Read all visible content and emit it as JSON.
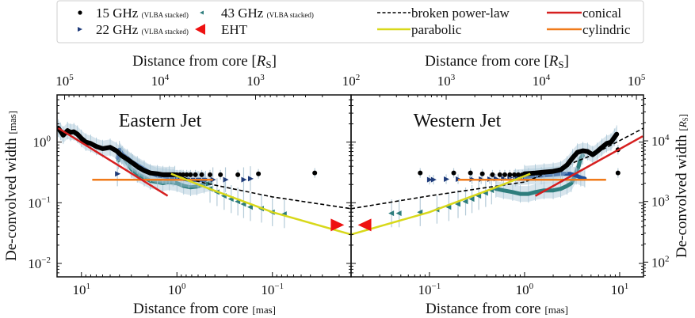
{
  "chart_data": {
    "type": "scatter",
    "title": "",
    "log_scale": {
      "x": true,
      "y": true
    },
    "legend": {
      "placement": "top",
      "entries": [
        {
          "label": "15 GHz",
          "note": "(VLBA stacked)",
          "marker": "circle",
          "color": "#000000"
        },
        {
          "label": "22 GHz",
          "note": "(VLBA stacked)",
          "marker": "triangle-right",
          "color": "#1f3b7a"
        },
        {
          "label": "43 GHz",
          "note": "(VLBA stacked)",
          "marker": "triangle-left",
          "color": "#2e7d7d"
        },
        {
          "label": "EHT",
          "note": "",
          "marker": "triangle-left-large",
          "color": "#ee1111"
        },
        {
          "label": "broken power-law",
          "note": "",
          "marker": "dashed-line",
          "color": "#000000"
        },
        {
          "label": "parabolic",
          "note": "",
          "marker": "line",
          "color": "#d8d81a"
        },
        {
          "label": "conical",
          "note": "",
          "marker": "line",
          "color": "#d61f1f"
        },
        {
          "label": "cylindric",
          "note": "",
          "marker": "line",
          "color": "#f07a1a"
        }
      ]
    },
    "panels": [
      {
        "name": "Eastern Jet",
        "xlabel": "Distance from core",
        "xlabel_unit": "[mas]",
        "top_xlabel": "Distance from core",
        "top_xlabel_unit": "[R",
        "top_xlabel_sub": "S",
        "ylabel": "De-convolved width",
        "ylabel_unit": "[mas]",
        "x_reversed": true,
        "xlim": [
          18,
          0.015
        ],
        "ylim": [
          0.006,
          6
        ],
        "x_ticks": [
          {
            "base": "10",
            "exp": "1",
            "value": 10
          },
          {
            "base": "10",
            "exp": "0",
            "value": 1
          },
          {
            "base": "10",
            "exp": "−1",
            "value": 0.1
          }
        ],
        "top_ticks": [
          {
            "base": "10",
            "exp": "5",
            "value": 100000
          },
          {
            "base": "10",
            "exp": "4",
            "value": 10000
          },
          {
            "base": "10",
            "exp": "3",
            "value": 1000
          },
          {
            "base": "10",
            "exp": "2",
            "value": 100
          }
        ],
        "y_ticks": [
          {
            "base": "10",
            "exp": "0",
            "value": 1
          },
          {
            "base": "10",
            "exp": "−1",
            "value": 0.1
          },
          {
            "base": "10",
            "exp": "−2",
            "value": 0.01
          }
        ],
        "series": [
          {
            "name": "15 GHz",
            "type": "scatter",
            "x": [
              1.0,
              0.93,
              0.86,
              0.79,
              0.72,
              0.64,
              0.55,
              0.45,
              0.35,
              0.23,
              0.14,
              0.036
            ],
            "y": [
              0.29,
              0.29,
              0.29,
              0.29,
              0.29,
              0.29,
              0.29,
              0.29,
              0.29,
              0.29,
              0.3,
              0.31
            ],
            "yerr_factor": 1.2
          },
          {
            "name": "15 GHz ridge",
            "type": "line",
            "x": [
              17.5,
              16.5,
              15.5,
              14,
              13,
              12,
              11,
              10,
              9,
              8,
              7,
              6,
              5,
              4.3,
              3.8,
              3.3,
              2.9,
              2.5,
              2.2,
              1.9,
              1.6,
              1.4,
              1.2,
              1.05
            ],
            "y": [
              1.7,
              1.5,
              1.3,
              1.55,
              1.45,
              1.48,
              1.35,
              1.15,
              1.0,
              0.95,
              0.85,
              0.78,
              0.82,
              0.72,
              0.6,
              0.52,
              0.45,
              0.38,
              0.34,
              0.31,
              0.3,
              0.29,
              0.29,
              0.29
            ]
          },
          {
            "name": "22 GHz",
            "type": "scatter",
            "x": [
              4.2,
              0.42,
              0.31,
              0.2,
              0.17
            ],
            "y": [
              0.3,
              0.24,
              0.24,
              0.24,
              0.25
            ],
            "yerr_factor": 1.6
          },
          {
            "name": "22 GHz ridge",
            "type": "line",
            "x": [
              4.2,
              4.0,
              3.7,
              3.3,
              3.0,
              2.6,
              2.2,
              1.9,
              1.6,
              1.3,
              1.1,
              0.9,
              0.75,
              0.6,
              0.5
            ],
            "y": [
              0.55,
              0.75,
              0.62,
              0.55,
              0.48,
              0.42,
              0.36,
              0.31,
              0.28,
              0.27,
              0.26,
              0.25,
              0.24,
              0.24,
              0.24
            ]
          },
          {
            "name": "43 GHz ridge",
            "type": "line",
            "x": [
              4.1,
              3.9,
              3.6,
              3.3,
              3.0,
              2.6,
              2.2,
              1.9,
              1.6,
              1.4,
              1.2,
              1.0,
              0.85,
              0.72,
              0.62,
              0.52,
              0.45
            ],
            "y": [
              0.5,
              0.65,
              0.55,
              0.45,
              0.36,
              0.3,
              0.26,
              0.23,
              0.22,
              0.21,
              0.22,
              0.21,
              0.19,
              0.18,
              0.185,
              0.2,
              0.21
            ]
          },
          {
            "name": "43 GHz",
            "type": "scatter",
            "x": [
              0.45,
              0.38,
              0.32,
              0.27,
              0.23,
              0.2,
              0.17,
              0.13,
              0.1,
              0.075
            ],
            "y": [
              0.17,
              0.15,
              0.13,
              0.115,
              0.105,
              0.095,
              0.085,
              0.08,
              0.07,
              0.065
            ],
            "yerr_factor": 1.7
          },
          {
            "name": "EHT",
            "type": "scatter",
            "x": [
              0.021
            ],
            "y": [
              0.043
            ]
          },
          {
            "name": "broken power-law",
            "type": "line",
            "x": [
              1.15,
              0.5,
              0.1,
              0.015
            ],
            "y": [
              0.29,
              0.21,
              0.125,
              0.08
            ]
          },
          {
            "name": "parabolic",
            "type": "line",
            "x": [
              1.15,
              0.5,
              0.1,
              0.015
            ],
            "y": [
              0.3,
              0.18,
              0.07,
              0.03
            ]
          },
          {
            "name": "conical",
            "type": "line",
            "x": [
              17.5,
              1.25
            ],
            "y": [
              1.7,
              0.13
            ]
          },
          {
            "name": "cylindric",
            "type": "line",
            "x": [
              7.7,
              0.42
            ],
            "y": [
              0.24,
              0.24
            ]
          }
        ]
      },
      {
        "name": "Western Jet",
        "xlabel": "Distance from core",
        "xlabel_unit": "[mas]",
        "top_xlabel": "Distance from core",
        "top_xlabel_unit": "[R",
        "top_xlabel_sub": "S",
        "ylabel": "De-convolved width",
        "ylabel_unit": "[R",
        "ylabel_sub": "S",
        "x_reversed": false,
        "xlim": [
          0.015,
          17.8
        ],
        "ylim": [
          0.006,
          6
        ],
        "x_ticks": [
          {
            "base": "10",
            "exp": "−1",
            "value": 0.1
          },
          {
            "base": "10",
            "exp": "0",
            "value": 1
          },
          {
            "base": "10",
            "exp": "1",
            "value": 10
          }
        ],
        "top_ticks": [
          {
            "base": "10",
            "exp": "2",
            "value": 100
          },
          {
            "base": "10",
            "exp": "3",
            "value": 1000
          },
          {
            "base": "10",
            "exp": "4",
            "value": 10000
          },
          {
            "base": "10",
            "exp": "5",
            "value": 100000
          }
        ],
        "right_y_ticks": [
          {
            "base": "10",
            "exp": "4",
            "value": 10000
          },
          {
            "base": "10",
            "exp": "3",
            "value": 1000
          },
          {
            "base": "10",
            "exp": "2",
            "value": 100
          }
        ],
        "series": [
          {
            "name": "15 GHz",
            "type": "scatter",
            "x": [
              0.08,
              0.18,
              0.27,
              0.36,
              0.46,
              0.55,
              0.62,
              0.7,
              0.78,
              0.86,
              0.95,
              9.6,
              9.6
            ],
            "y": [
              0.31,
              0.31,
              0.31,
              0.3,
              0.29,
              0.29,
              0.29,
              0.29,
              0.29,
              0.29,
              0.29,
              0.31,
              0.75
            ],
            "yerr_factor": 1.2
          },
          {
            "name": "15 GHz ridge",
            "type": "line",
            "x": [
              1.0,
              1.3,
              1.6,
              2.0,
              2.4,
              2.8,
              3.2,
              3.6,
              4.1,
              4.6,
              5.2,
              5.8,
              6.5,
              7.3,
              8.1,
              8.8,
              9.3
            ],
            "y": [
              0.3,
              0.31,
              0.32,
              0.33,
              0.35,
              0.42,
              0.55,
              0.68,
              0.72,
              0.7,
              0.62,
              0.7,
              0.82,
              0.95,
              1.0,
              1.2,
              1.35
            ]
          },
          {
            "name": "22 GHz",
            "type": "scatter",
            "x": [
              0.1,
              0.11,
              0.15,
              0.2,
              0.28,
              0.35,
              0.43,
              0.5,
              0.6,
              0.7,
              0.8
            ],
            "y": [
              0.24,
              0.24,
              0.245,
              0.245,
              0.245,
              0.245,
              0.245,
              0.25,
              0.25,
              0.26,
              0.26
            ],
            "yerr_factor": 1.2
          },
          {
            "name": "22 GHz ridge",
            "type": "line",
            "x": [
              0.8,
              1.1,
              1.5,
              2.0,
              2.5,
              3.0,
              3.5,
              3.9,
              4.3
            ],
            "y": [
              0.26,
              0.27,
              0.28,
              0.29,
              0.3,
              0.3,
              0.28,
              0.26,
              0.25
            ]
          },
          {
            "name": "43 GHz ridge",
            "type": "line",
            "x": [
              0.5,
              0.6,
              0.75,
              0.9,
              1.1,
              1.3,
              1.6,
              2.0,
              2.4,
              2.8,
              3.1,
              3.4,
              3.7,
              3.9,
              4.1
            ],
            "y": [
              0.17,
              0.16,
              0.15,
              0.14,
              0.14,
              0.15,
              0.16,
              0.16,
              0.17,
              0.19,
              0.21,
              0.28,
              0.4,
              0.55,
              0.6
            ]
          },
          {
            "name": "43 GHz",
            "type": "scatter",
            "x": [
              0.04,
              0.048,
              0.08,
              0.12,
              0.16,
              0.2,
              0.24,
              0.28,
              0.33,
              0.39,
              0.45
            ],
            "y": [
              0.067,
              0.067,
              0.07,
              0.077,
              0.085,
              0.095,
              0.105,
              0.115,
              0.13,
              0.145,
              0.16
            ],
            "yerr_factor": 1.7
          },
          {
            "name": "EHT",
            "type": "scatter",
            "x": [
              0.021
            ],
            "y": [
              0.043
            ]
          },
          {
            "name": "broken power-law",
            "type": "line",
            "x": [
              0.015,
              0.1,
              1.0,
              5,
              17.8
            ],
            "y": [
              0.08,
              0.13,
              0.22,
              0.6,
              1.7
            ]
          },
          {
            "name": "parabolic",
            "type": "line",
            "x": [
              0.015,
              0.1,
              0.5,
              1.15
            ],
            "y": [
              0.03,
              0.07,
              0.18,
              0.3
            ]
          },
          {
            "name": "conical",
            "type": "line",
            "x": [
              1.3,
              17.5
            ],
            "y": [
              0.13,
              1.25
            ]
          },
          {
            "name": "cylindric",
            "type": "line",
            "x": [
              0.2,
              7.2
            ],
            "y": [
              0.24,
              0.24
            ]
          }
        ]
      }
    ]
  }
}
